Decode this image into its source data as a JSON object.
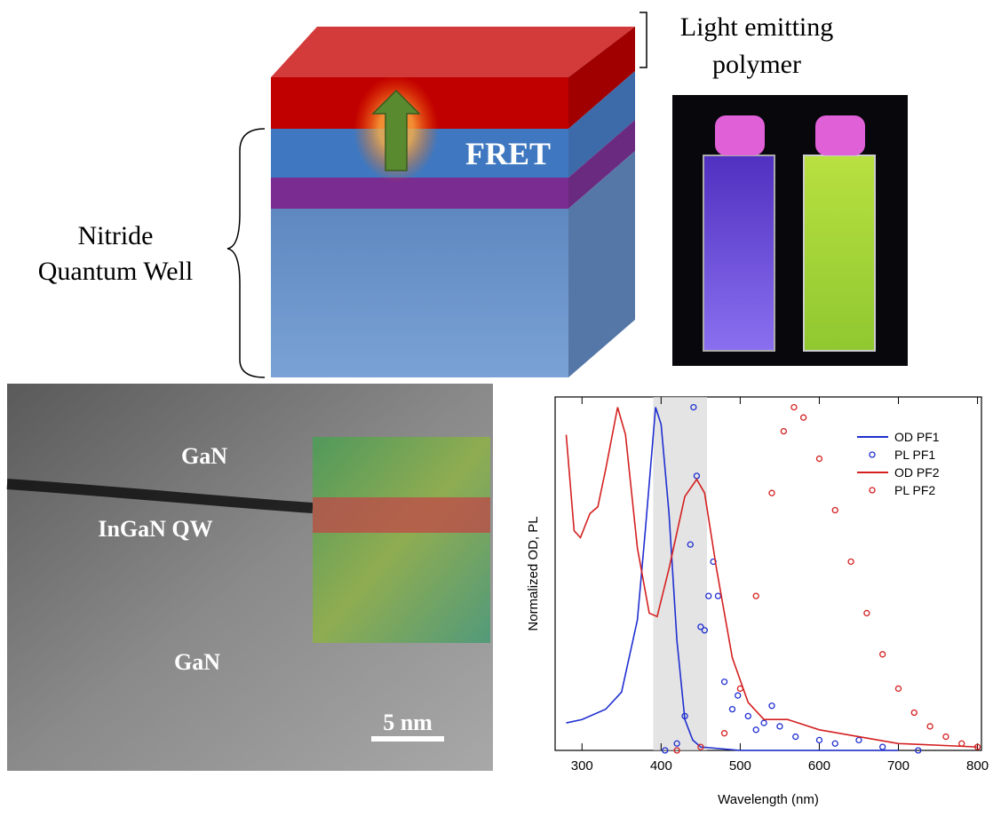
{
  "diagram": {
    "polymer_label": [
      "Light emitting",
      "polymer"
    ],
    "fret_label": "FRET",
    "well_label": [
      "Nitride",
      "Quantum Well"
    ],
    "tem_labels": {
      "top": "GaN",
      "middle": "InGaN QW",
      "bottom": "GaN",
      "scale": "5 nm"
    }
  },
  "chart_data": {
    "type": "line",
    "xlabel": "Wavelength (nm)",
    "ylabel": "Normalized OD, PL",
    "xlim": [
      266,
      805
    ],
    "ylim": [
      0,
      1.03
    ],
    "xticks": [
      300,
      400,
      500,
      600,
      700,
      800
    ],
    "shaded_region": [
      390,
      458
    ],
    "legend": "top-right",
    "series": [
      {
        "name": "OD PF1",
        "color": "#1f2fd0",
        "style": "line",
        "x": [
          280,
          300,
          330,
          350,
          370,
          380,
          393,
          400,
          410,
          420,
          430,
          440,
          450,
          500,
          600,
          700
        ],
        "values": [
          0.08,
          0.09,
          0.12,
          0.17,
          0.38,
          0.64,
          1.0,
          0.95,
          0.69,
          0.32,
          0.09,
          0.03,
          0.01,
          0,
          0,
          0
        ]
      },
      {
        "name": "PL PF1",
        "color": "#1f2fd0",
        "style": "markers",
        "x": [
          405,
          420,
          430,
          437,
          441,
          445,
          450,
          455,
          460,
          466,
          472,
          480,
          490,
          497,
          510,
          520,
          530,
          540,
          550,
          570,
          600,
          620,
          650,
          680,
          725
        ],
        "values": [
          0,
          0.02,
          0.1,
          0.6,
          1.0,
          0.8,
          0.36,
          0.35,
          0.45,
          0.55,
          0.45,
          0.2,
          0.12,
          0.16,
          0.1,
          0.06,
          0.08,
          0.13,
          0.07,
          0.04,
          0.03,
          0.02,
          0.03,
          0.01,
          0
        ]
      },
      {
        "name": "OD PF2",
        "color": "#d42020",
        "style": "line",
        "x": [
          280,
          290,
          298,
          310,
          320,
          330,
          345,
          355,
          370,
          385,
          395,
          410,
          430,
          445,
          455,
          470,
          490,
          510,
          530,
          560,
          600,
          650,
          700,
          800
        ],
        "values": [
          0.92,
          0.64,
          0.62,
          0.69,
          0.71,
          0.82,
          1.0,
          0.92,
          0.59,
          0.4,
          0.39,
          0.53,
          0.74,
          0.79,
          0.75,
          0.53,
          0.27,
          0.14,
          0.09,
          0.09,
          0.06,
          0.04,
          0.02,
          0.01
        ]
      },
      {
        "name": "PL PF2",
        "color": "#d42020",
        "style": "markers",
        "x": [
          420,
          450,
          480,
          500,
          520,
          540,
          555,
          568,
          580,
          600,
          620,
          640,
          660,
          680,
          700,
          720,
          740,
          760,
          780,
          800
        ],
        "values": [
          0,
          0.01,
          0.05,
          0.18,
          0.45,
          0.75,
          0.93,
          1.0,
          0.97,
          0.85,
          0.7,
          0.55,
          0.4,
          0.28,
          0.18,
          0.11,
          0.07,
          0.04,
          0.02,
          0.01
        ]
      }
    ]
  }
}
